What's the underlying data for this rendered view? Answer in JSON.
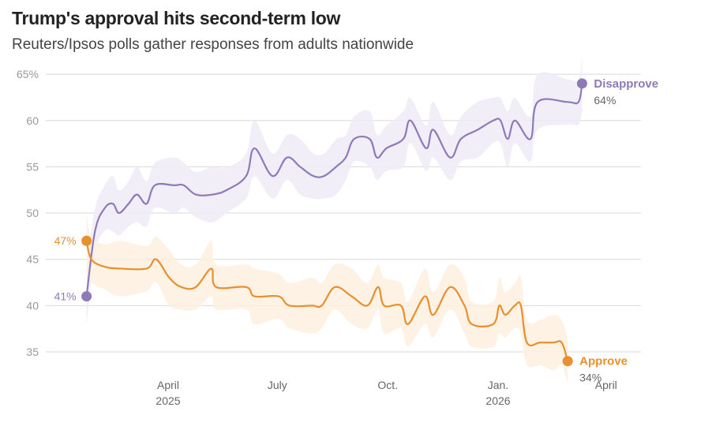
{
  "title": "Trump's approval hits second-term low",
  "subtitle": "Reuters/Ipsos polls gather responses from adults nationwide",
  "colors": {
    "disapprove": "#8f7ab8",
    "approve": "#e8902e",
    "grid": "#d9d9d9",
    "disapprove_band": "#efebf7",
    "approve_band": "#fdf0df"
  },
  "chart_data": {
    "type": "line",
    "title": "Trump's approval hits second-term low",
    "subtitle": "Reuters/Ipsos polls gather responses from adults nationwide",
    "xlabel": "",
    "ylabel": "",
    "ylim": [
      33,
      65
    ],
    "y_ticks": [
      {
        "value": 35,
        "label": "35"
      },
      {
        "value": 40,
        "label": "40"
      },
      {
        "value": 45,
        "label": "45"
      },
      {
        "value": 50,
        "label": "50"
      },
      {
        "value": 55,
        "label": "55"
      },
      {
        "value": 60,
        "label": "60"
      },
      {
        "value": 65,
        "label": "65%"
      }
    ],
    "x_ticks": [
      {
        "date": "2025-04-01",
        "label": "April",
        "sublabel": "2025"
      },
      {
        "date": "2025-07-01",
        "label": "July",
        "sublabel": ""
      },
      {
        "date": "2025-10-01",
        "label": "Oct.",
        "sublabel": ""
      },
      {
        "date": "2026-01-01",
        "label": "Jan.",
        "sublabel": "2026"
      },
      {
        "date": "2026-04-01",
        "label": "April",
        "sublabel": ""
      }
    ],
    "grid": true,
    "series": [
      {
        "name": "Disapprove",
        "color": "#8f7ab8",
        "start_label": "41%",
        "end_label": "64%",
        "points": [
          [
            "2025-01-23",
            41
          ],
          [
            "2025-01-30",
            48
          ],
          [
            "2025-02-07",
            50.5
          ],
          [
            "2025-02-14",
            51
          ],
          [
            "2025-02-19",
            50
          ],
          [
            "2025-02-27",
            51
          ],
          [
            "2025-03-06",
            52
          ],
          [
            "2025-03-14",
            51
          ],
          [
            "2025-03-21",
            53
          ],
          [
            "2025-04-06",
            53
          ],
          [
            "2025-04-14",
            53
          ],
          [
            "2025-04-24",
            52
          ],
          [
            "2025-05-08",
            52
          ],
          [
            "2025-05-20",
            52.5
          ],
          [
            "2025-06-05",
            54
          ],
          [
            "2025-06-12",
            57
          ],
          [
            "2025-06-27",
            54
          ],
          [
            "2025-07-09",
            56
          ],
          [
            "2025-07-20",
            55
          ],
          [
            "2025-07-31",
            54
          ],
          [
            "2025-08-09",
            54
          ],
          [
            "2025-08-19",
            55
          ],
          [
            "2025-08-27",
            56
          ],
          [
            "2025-09-03",
            58
          ],
          [
            "2025-09-16",
            58
          ],
          [
            "2025-09-22",
            56
          ],
          [
            "2025-09-30",
            57
          ],
          [
            "2025-10-14",
            58
          ],
          [
            "2025-10-20",
            60
          ],
          [
            "2025-11-02",
            57
          ],
          [
            "2025-11-08",
            59
          ],
          [
            "2025-11-22",
            56
          ],
          [
            "2025-12-01",
            58
          ],
          [
            "2025-12-15",
            59
          ],
          [
            "2025-12-28",
            60
          ],
          [
            "2026-01-03",
            60
          ],
          [
            "2026-01-09",
            58
          ],
          [
            "2026-01-15",
            60
          ],
          [
            "2026-01-28",
            58
          ],
          [
            "2026-02-03",
            62
          ],
          [
            "2026-02-28",
            62
          ],
          [
            "2026-03-09",
            62
          ],
          [
            "2026-03-12",
            64
          ]
        ]
      },
      {
        "name": "Approve",
        "color": "#e8902e",
        "start_label": "47%",
        "end_label": "34%",
        "points": [
          [
            "2025-01-23",
            47
          ],
          [
            "2025-01-27",
            45
          ],
          [
            "2025-02-07",
            44.2
          ],
          [
            "2025-02-20",
            44
          ],
          [
            "2025-03-14",
            44
          ],
          [
            "2025-03-22",
            45
          ],
          [
            "2025-04-02",
            43
          ],
          [
            "2025-04-12",
            42
          ],
          [
            "2025-04-24",
            42
          ],
          [
            "2025-05-07",
            44
          ],
          [
            "2025-05-11",
            42
          ],
          [
            "2025-06-05",
            42
          ],
          [
            "2025-06-12",
            41
          ],
          [
            "2025-07-02",
            41
          ],
          [
            "2025-07-11",
            40
          ],
          [
            "2025-07-30",
            40
          ],
          [
            "2025-08-07",
            40
          ],
          [
            "2025-08-18",
            42
          ],
          [
            "2025-09-01",
            41
          ],
          [
            "2025-09-14",
            40
          ],
          [
            "2025-09-23",
            42
          ],
          [
            "2025-09-28",
            40
          ],
          [
            "2025-10-12",
            40
          ],
          [
            "2025-10-18",
            38
          ],
          [
            "2025-11-01",
            41
          ],
          [
            "2025-11-08",
            39
          ],
          [
            "2025-11-22",
            42
          ],
          [
            "2025-12-04",
            40
          ],
          [
            "2025-12-10",
            38
          ],
          [
            "2025-12-28",
            38
          ],
          [
            "2026-01-02",
            40
          ],
          [
            "2026-01-07",
            39
          ],
          [
            "2026-01-15",
            40
          ],
          [
            "2026-01-20",
            40
          ],
          [
            "2026-01-25",
            36
          ],
          [
            "2026-02-05",
            36
          ],
          [
            "2026-02-16",
            36
          ],
          [
            "2026-02-23",
            36
          ],
          [
            "2026-02-28",
            34
          ]
        ]
      }
    ]
  }
}
